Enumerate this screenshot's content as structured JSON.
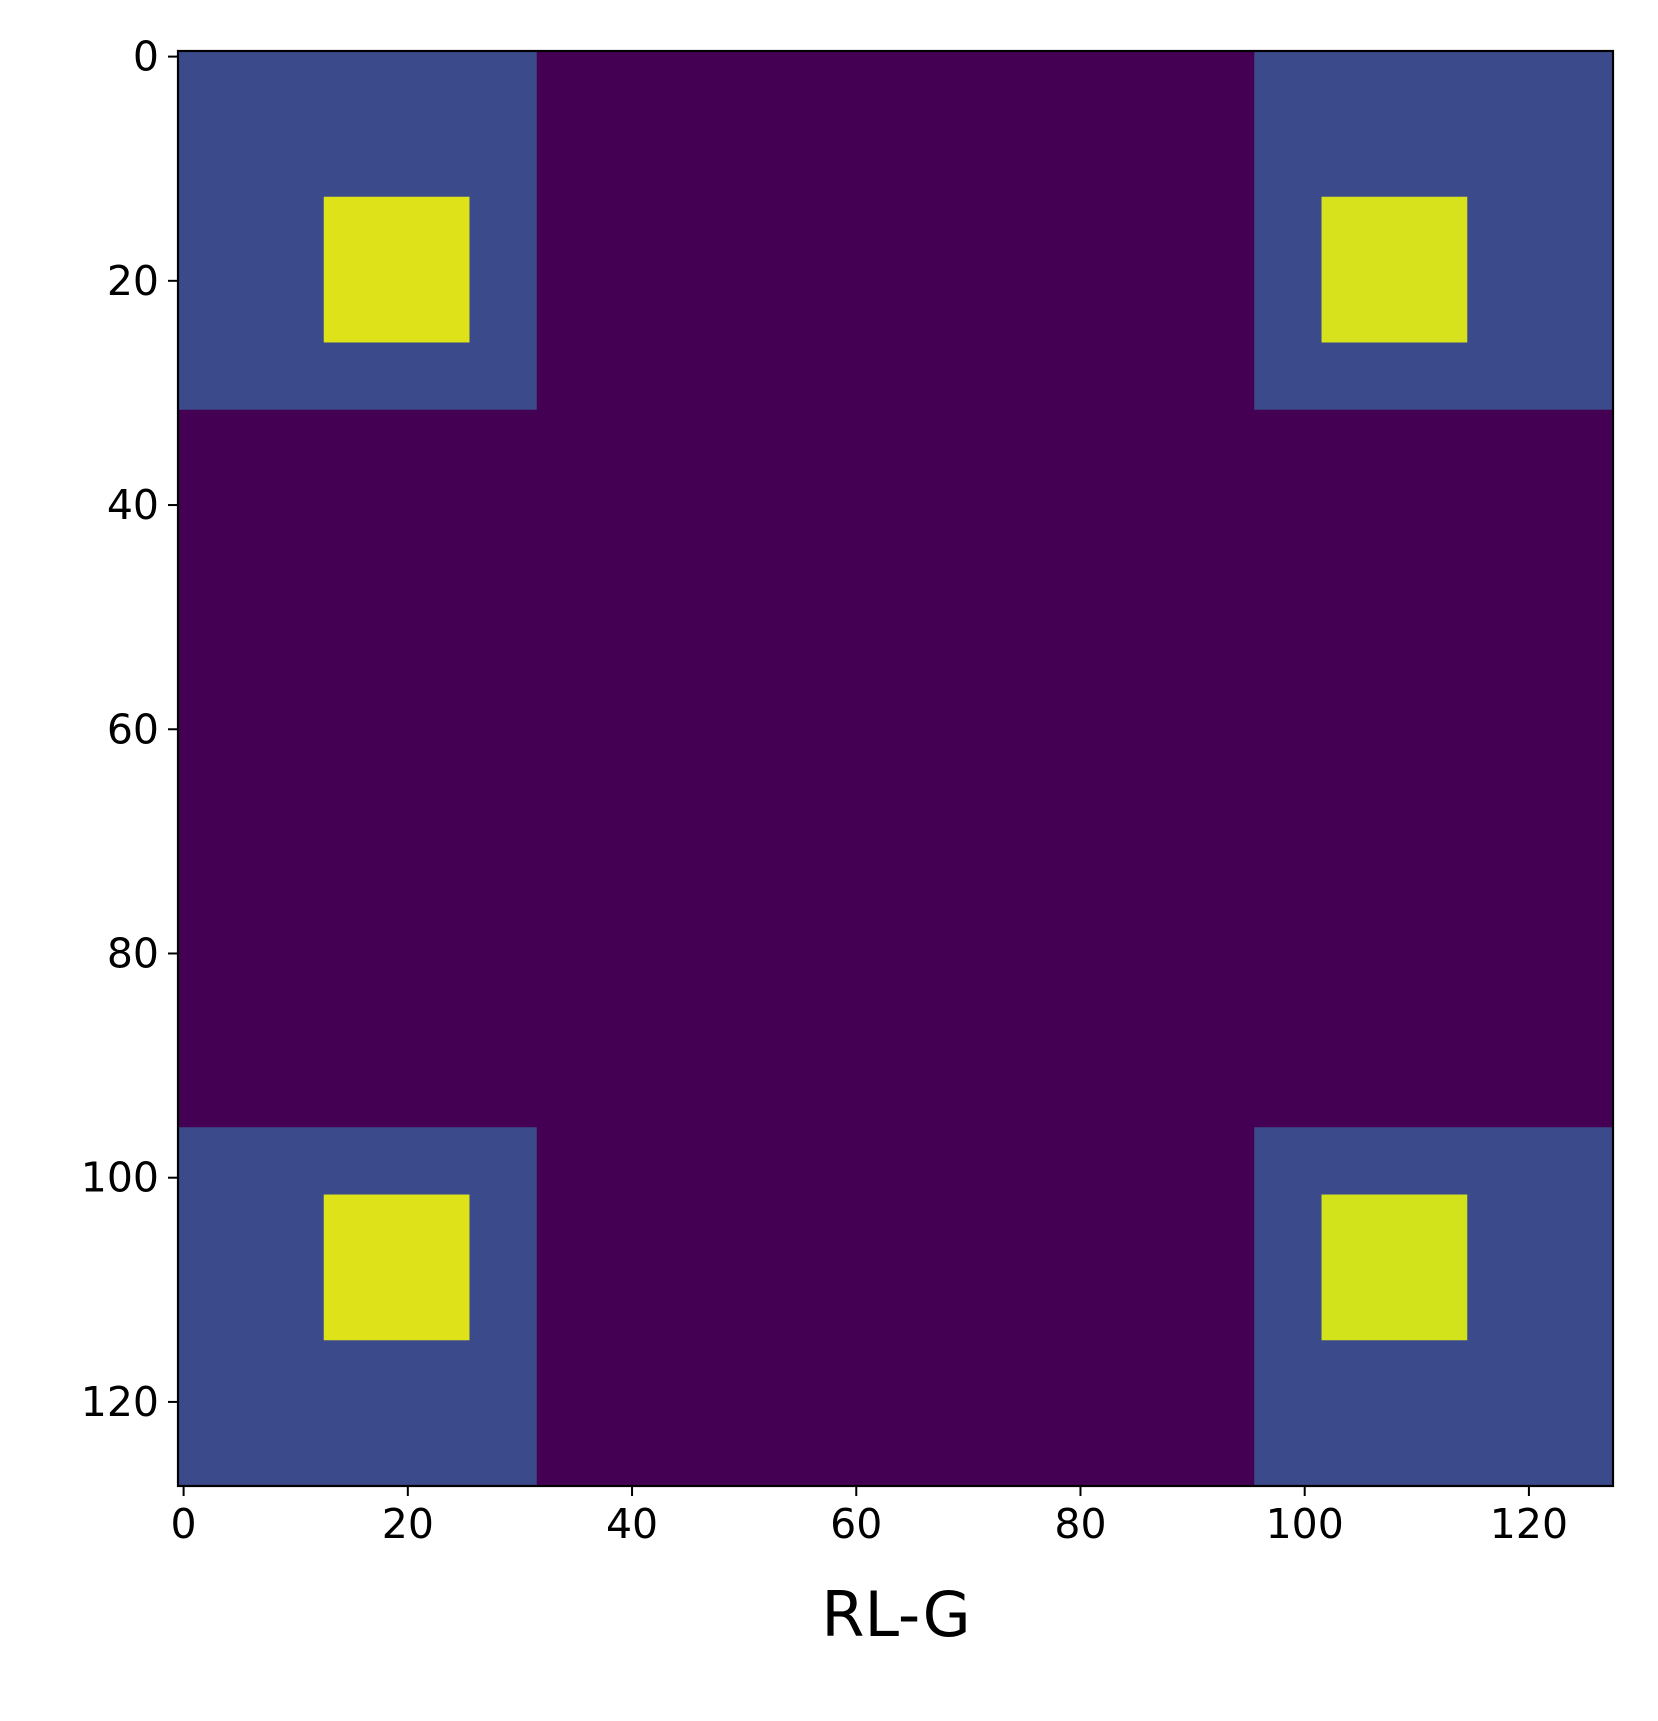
{
  "chart_data": {
    "type": "image",
    "xlabel": "RL-G",
    "xlim": [
      -0.5,
      127.5
    ],
    "ylim": [
      127.5,
      -0.5
    ],
    "xticks": [
      0,
      20,
      40,
      60,
      80,
      100,
      120
    ],
    "yticks": [
      0,
      20,
      40,
      60,
      80,
      100,
      120
    ],
    "background": "#440154",
    "regions": [
      {
        "x": [
          -0.5,
          31.5
        ],
        "y": [
          -0.5,
          31.5
        ],
        "color": "#3b4a8a"
      },
      {
        "x": [
          95.5,
          127.5
        ],
        "y": [
          -0.5,
          31.5
        ],
        "color": "#3b4a8a"
      },
      {
        "x": [
          -0.5,
          31.5
        ],
        "y": [
          95.5,
          127.5
        ],
        "color": "#3b4a8a"
      },
      {
        "x": [
          95.5,
          127.5
        ],
        "y": [
          95.5,
          127.5
        ],
        "color": "#3b4a8a"
      },
      {
        "x": [
          12.5,
          25.5
        ],
        "y": [
          12.5,
          25.5
        ],
        "color": "#dde318"
      },
      {
        "x": [
          101.5,
          114.5
        ],
        "y": [
          12.5,
          25.5
        ],
        "color": "#d8e21c"
      },
      {
        "x": [
          12.5,
          25.5
        ],
        "y": [
          101.5,
          114.5
        ],
        "color": "#dde318"
      },
      {
        "x": [
          101.5,
          114.5
        ],
        "y": [
          101.5,
          114.5
        ],
        "color": "#d2e21b"
      }
    ]
  }
}
